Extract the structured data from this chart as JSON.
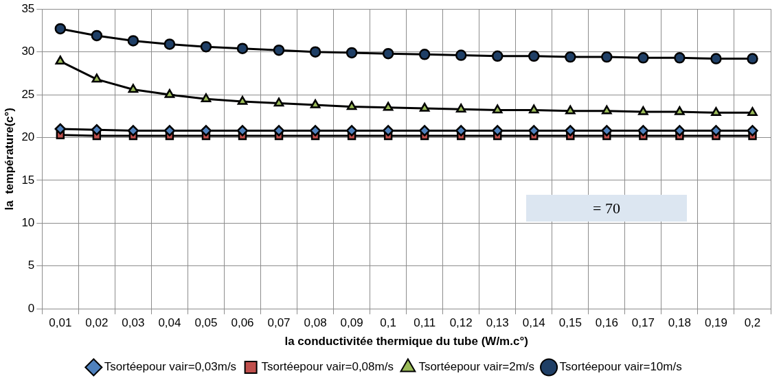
{
  "chart_data": {
    "type": "line",
    "ylabel": "la  température(c°)",
    "xlabel": "la conductivitée thermique du tube (W/m.c°)",
    "categories": [
      "0,01",
      "0,02",
      "0,03",
      "0,04",
      "0,05",
      "0,06",
      "0,07",
      "0,08",
      "0,09",
      "0,1",
      "0,11",
      "0,12",
      "0,13",
      "0,14",
      "0,15",
      "0,16",
      "0,17",
      "0,18",
      "0,19",
      "0,2"
    ],
    "series": [
      {
        "name": "Tsortéepour vair=0,03m/s",
        "color": "#4f81bd",
        "marker": "diamond",
        "values": [
          21.0,
          20.9,
          20.8,
          20.8,
          20.8,
          20.8,
          20.8,
          20.8,
          20.8,
          20.8,
          20.8,
          20.8,
          20.8,
          20.8,
          20.8,
          20.8,
          20.8,
          20.8,
          20.8,
          20.8
        ]
      },
      {
        "name": "Tsortéepour vair=0,08m/s",
        "color": "#c0504d",
        "marker": "square",
        "values": [
          20.3,
          20.2,
          20.2,
          20.2,
          20.2,
          20.2,
          20.2,
          20.2,
          20.2,
          20.2,
          20.2,
          20.2,
          20.2,
          20.2,
          20.2,
          20.2,
          20.2,
          20.2,
          20.2,
          20.2
        ]
      },
      {
        "name": "Tsortéepour vair=2m/s",
        "color": "#9bbb59",
        "marker": "triangle",
        "values": [
          28.9,
          26.8,
          25.6,
          25.0,
          24.5,
          24.2,
          24.0,
          23.8,
          23.6,
          23.5,
          23.4,
          23.3,
          23.2,
          23.2,
          23.1,
          23.1,
          23.0,
          23.0,
          22.9,
          22.9
        ]
      },
      {
        "name": "Tsortéepour vair=10m/s",
        "color": "#1f3f66",
        "marker": "circle",
        "values": [
          32.7,
          31.9,
          31.3,
          30.9,
          30.6,
          30.4,
          30.2,
          30.0,
          29.9,
          29.8,
          29.7,
          29.6,
          29.5,
          29.5,
          29.4,
          29.4,
          29.3,
          29.3,
          29.2,
          29.2
        ]
      }
    ],
    "ylim": [
      0,
      35
    ],
    "yticks": [
      0,
      5,
      10,
      15,
      20,
      25,
      30,
      35
    ],
    "grid": true,
    "legend": "bottom",
    "line_style": "solid",
    "annotations": [
      "= 70"
    ]
  }
}
